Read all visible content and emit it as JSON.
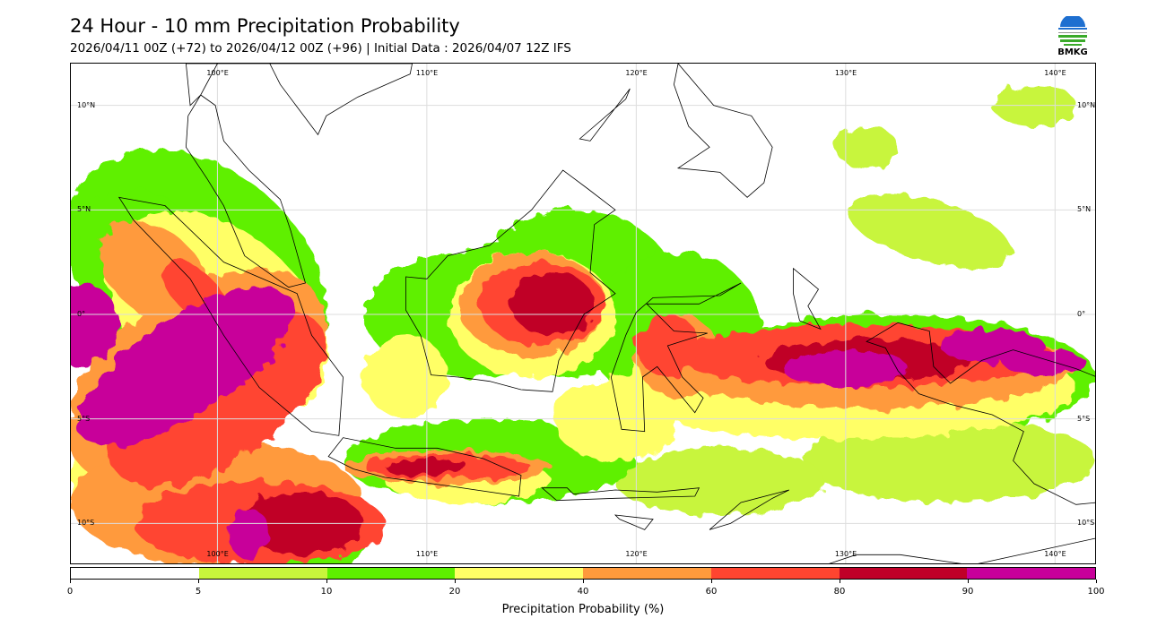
{
  "header": {
    "title": "24 Hour - 10 mm Precipitation Probability",
    "subtitle": "2026/04/11 00Z (+72) to 2026/04/12 00Z (+96) | Initial Data : 2026/04/07 12Z IFS",
    "logo_text": "BMKG"
  },
  "map": {
    "lon_labels": [
      "100°E",
      "110°E",
      "120°E",
      "130°E",
      "140°E"
    ],
    "lon_values": [
      100,
      110,
      120,
      130,
      140
    ],
    "lat_labels": [
      "10°N",
      "5°N",
      "0°",
      "5°S",
      "10°S"
    ],
    "lat_values": [
      10,
      5,
      0,
      -5,
      -10
    ],
    "extent": {
      "lon": [
        93,
        142
      ],
      "lat": [
        -12,
        12
      ]
    }
  },
  "colorbar": {
    "label": "Precipitation Probability (%)",
    "ticks": [
      "0",
      "5",
      "10",
      "20",
      "40",
      "60",
      "80",
      "90",
      "100"
    ],
    "colors": [
      "#ffffff",
      "#c8f53c",
      "#5ef000",
      "#ffff66",
      "#ff9a3c",
      "#ff4530",
      "#c00028",
      "#c8009a"
    ]
  }
}
